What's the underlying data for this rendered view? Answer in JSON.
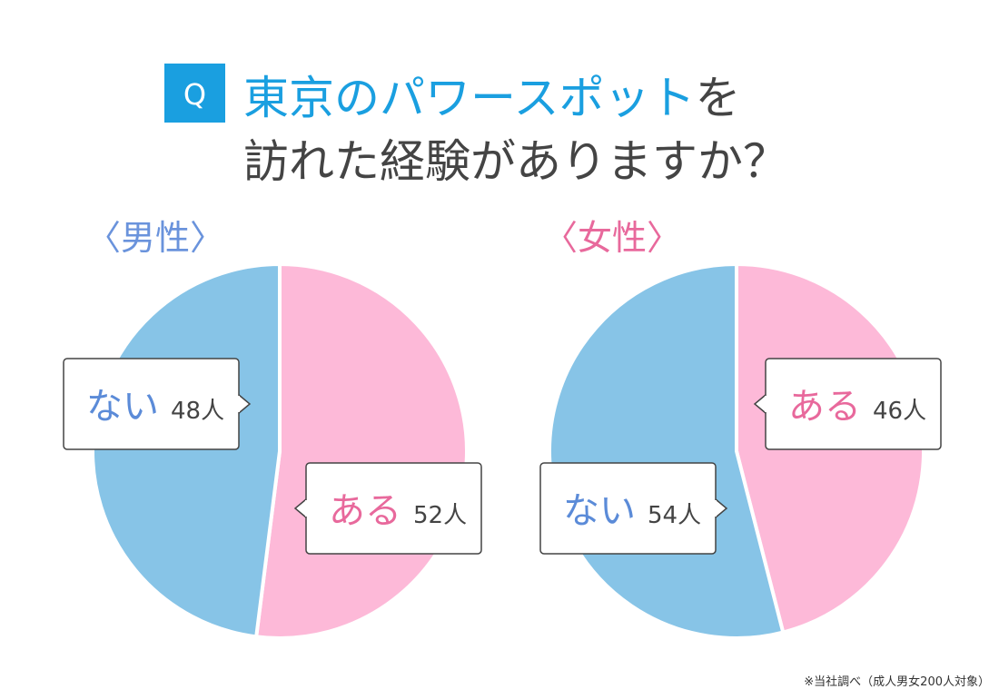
{
  "header": {
    "badge": "Q",
    "title_line1_highlight": "東京のパワースポット",
    "title_line1_rest": "を",
    "title_line2": "訪れた経験がありますか？"
  },
  "chart_data": [
    {
      "type": "pie",
      "title": "〈男性〉",
      "title_color": "#6a93dc",
      "categories": [
        "ある",
        "ない"
      ],
      "values": [
        52,
        48
      ],
      "value_labels": [
        "52人",
        "48人"
      ],
      "colors": [
        "#fdb9d8",
        "#87c4e7"
      ],
      "label_colors": [
        "#e8699c",
        "#5b8bd8"
      ]
    },
    {
      "type": "pie",
      "title": "〈女性〉",
      "title_color": "#e8699c",
      "categories": [
        "ある",
        "ない"
      ],
      "values": [
        46,
        54
      ],
      "value_labels": [
        "46人",
        "54人"
      ],
      "colors": [
        "#fdb9d8",
        "#87c4e7"
      ],
      "label_colors": [
        "#e8699c",
        "#5b8bd8"
      ]
    }
  ],
  "footnote": "※当社調べ（成人男女200人対象）"
}
